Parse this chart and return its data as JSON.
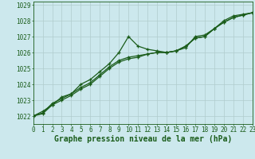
{
  "title": "Graphe pression niveau de la mer (hPa)",
  "bg_color": "#cce8ed",
  "grid_color": "#b0cccc",
  "line_color": "#1a5c1a",
  "xlim": [
    0,
    23
  ],
  "ylim": [
    1021.5,
    1029.2
  ],
  "yticks": [
    1022,
    1023,
    1024,
    1025,
    1026,
    1027,
    1028,
    1029
  ],
  "xticks": [
    0,
    1,
    2,
    3,
    4,
    5,
    6,
    7,
    8,
    9,
    10,
    11,
    12,
    13,
    14,
    15,
    16,
    17,
    18,
    19,
    20,
    21,
    22,
    23
  ],
  "series": [
    [
      1022.0,
      1022.3,
      1022.7,
      1023.2,
      1023.4,
      1024.0,
      1024.3,
      1024.8,
      1025.3,
      1026.0,
      1027.0,
      1026.4,
      1026.2,
      1026.1,
      1026.0,
      1026.1,
      1026.3,
      1027.0,
      1027.1,
      1027.5,
      1028.0,
      1028.3,
      1028.4,
      1028.5
    ],
    [
      1022.0,
      1022.2,
      1022.8,
      1023.1,
      1023.4,
      1023.8,
      1024.1,
      1024.6,
      1025.1,
      1025.5,
      1025.7,
      1025.8,
      1025.9,
      1026.0,
      1026.0,
      1026.1,
      1026.4,
      1026.9,
      1027.0,
      1027.5,
      1027.9,
      1028.2,
      1028.35,
      1028.5
    ],
    [
      1022.0,
      1022.15,
      1022.7,
      1023.0,
      1023.3,
      1023.7,
      1024.0,
      1024.5,
      1025.0,
      1025.4,
      1025.6,
      1025.7,
      1025.9,
      1026.0,
      1026.0,
      1026.1,
      1026.4,
      1026.9,
      1027.0,
      1027.5,
      1027.9,
      1028.2,
      1028.35,
      1028.5
    ]
  ],
  "marker": "+",
  "markersize": 3,
  "linewidth": 0.9,
  "title_fontsize": 7,
  "tick_fontsize": 5.5
}
